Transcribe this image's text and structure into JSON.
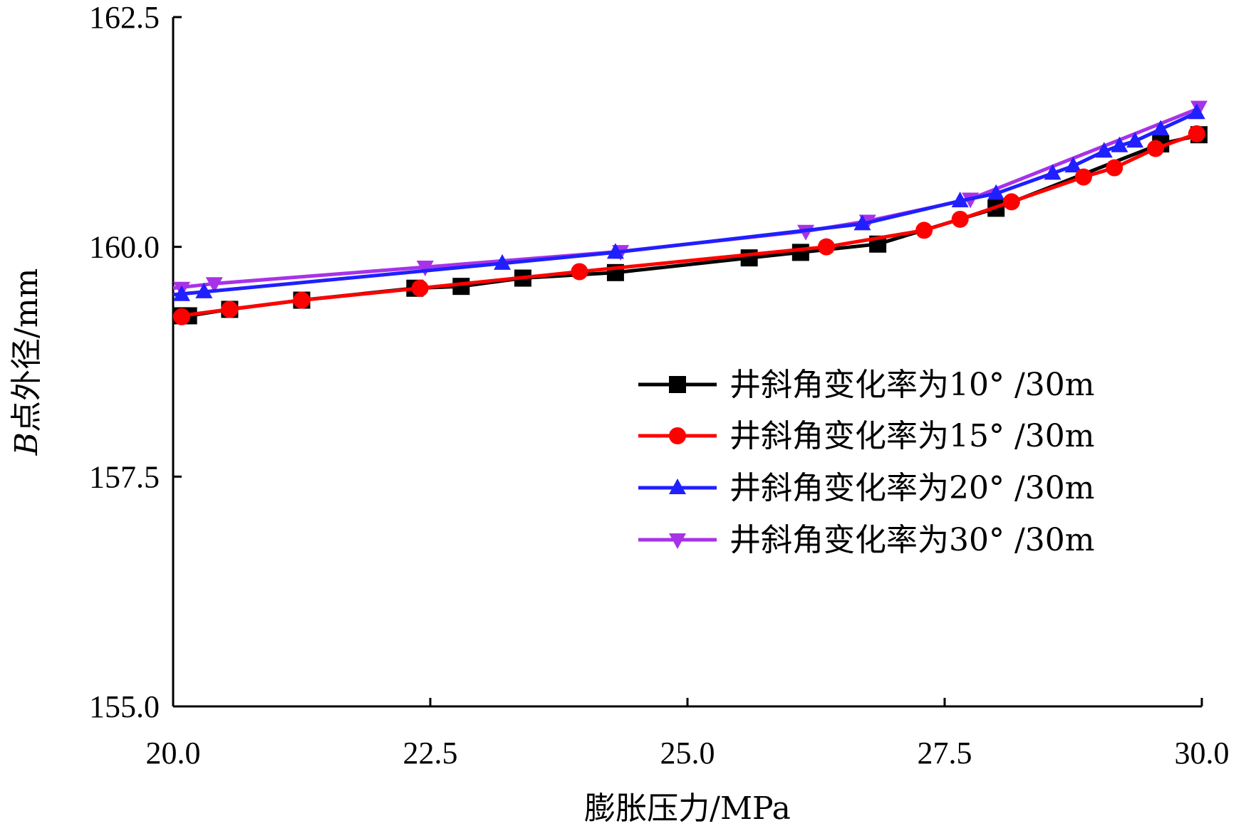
{
  "chart_data": {
    "type": "line",
    "xlabel": "膨胀压力/MPa",
    "ylabel_italic": "B",
    "ylabel_rest": "点外径/mm",
    "xlim": [
      20.0,
      30.0
    ],
    "ylim": [
      155.0,
      162.5
    ],
    "x_ticks": [
      "20.0",
      "22.5",
      "25.0",
      "27.5",
      "30.0"
    ],
    "y_ticks": [
      "155.0",
      "157.5",
      "160.0",
      "162.5"
    ],
    "grid": false,
    "legend_position": "center-right",
    "series": [
      {
        "name": "井斜角变化率为10° /30m",
        "color": "#000000",
        "marker": "square",
        "x": [
          20.0,
          20.15,
          20.55,
          21.25,
          22.35,
          22.8,
          23.4,
          24.3,
          25.6,
          26.1,
          26.85,
          28.0,
          29.6,
          30.0
        ],
        "y": [
          159.25,
          159.25,
          159.32,
          159.42,
          159.55,
          159.57,
          159.66,
          159.72,
          159.88,
          159.94,
          160.03,
          160.42,
          161.12,
          161.22
        ]
      },
      {
        "name": "井斜角变化率为15° /30m",
        "color": "#ff0000",
        "marker": "circle",
        "x": [
          20.0,
          20.55,
          21.25,
          22.4,
          23.95,
          26.35,
          27.3,
          27.65,
          28.15,
          28.85,
          29.15,
          29.55,
          29.95
        ],
        "y": [
          159.24,
          159.32,
          159.42,
          159.55,
          159.73,
          160.0,
          160.18,
          160.3,
          160.49,
          160.76,
          160.86,
          161.07,
          161.23
        ]
      },
      {
        "name": "井斜角变化率为20° /30m",
        "color": "#1f1fff",
        "marker": "triangle-up",
        "x": [
          20.0,
          20.3,
          23.2,
          24.3,
          26.7,
          27.65,
          28.0,
          28.55,
          28.75,
          29.05,
          29.2,
          29.35,
          29.6,
          29.95
        ],
        "y": [
          159.48,
          159.51,
          159.82,
          159.94,
          160.25,
          160.5,
          160.58,
          160.8,
          160.88,
          161.04,
          161.1,
          161.15,
          161.28,
          161.46
        ]
      },
      {
        "name": "井斜角变化率为30° /30m",
        "color": "#a832e8",
        "marker": "triangle-down",
        "x": [
          20.0,
          20.4,
          22.45,
          24.35,
          26.15,
          26.75,
          27.75,
          30.0
        ],
        "y": [
          159.55,
          159.6,
          159.78,
          159.95,
          160.17,
          160.28,
          160.52,
          161.52
        ]
      }
    ]
  }
}
